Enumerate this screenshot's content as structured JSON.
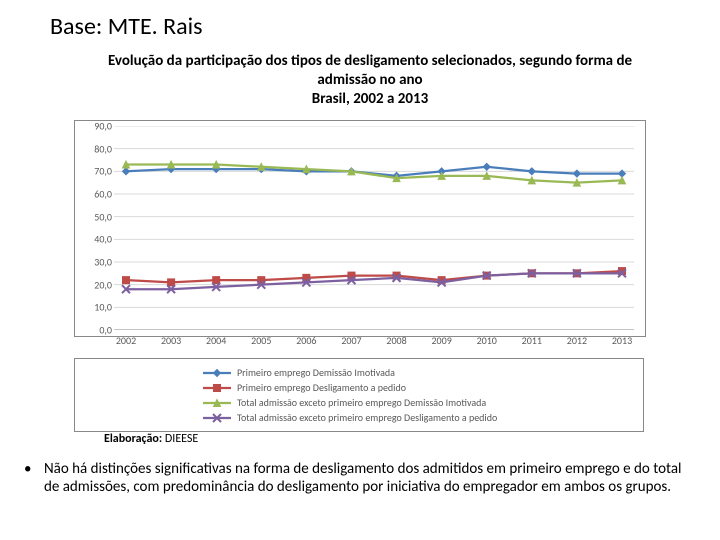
{
  "base_title": "Base: MTE. Rais",
  "chart_title_lines": [
    "Evolução da participação dos tipos de desligamento selecionados, segundo forma de",
    "admissão no ano",
    "Brasil, 2002 a 2013"
  ],
  "source_label": "Elaboração: DIEESE",
  "bullet_text": "Não há distinções significativas na forma de desligamento dos admitidos em primeiro emprego e do total de admissões, com predominância do desligamento por iniciativa do empregador em ambos os grupos.",
  "chart": {
    "type": "line",
    "background_color": "#ffffff",
    "border_color": "#888888",
    "grid_color": "#d9d9d9",
    "tick_color": "#888888",
    "tick_font_size": 10,
    "tick_font_color": "#595959",
    "ylim": [
      0,
      90
    ],
    "ytick_step": 10,
    "y_decimal": ",0",
    "categories": [
      "2002",
      "2003",
      "2004",
      "2005",
      "2006",
      "2007",
      "2008",
      "2009",
      "2010",
      "2011",
      "2012",
      "2013"
    ],
    "series": [
      {
        "name": "Primeiro emprego Demissão Imotivada",
        "color": "#4a7ebb",
        "marker": "diamond",
        "marker_size": 7,
        "line_width": 2.25,
        "values": [
          70,
          71,
          71,
          71,
          70,
          70,
          68,
          70,
          72,
          70,
          69,
          69
        ]
      },
      {
        "name": "Primeiro emprego Desligamento a pedido",
        "color": "#be4b48",
        "marker": "square",
        "marker_size": 7,
        "line_width": 2.25,
        "values": [
          22,
          21,
          22,
          22,
          23,
          24,
          24,
          22,
          24,
          25,
          25,
          26
        ]
      },
      {
        "name": "Total admissão exceto primeiro emprego Demissão Imotivada",
        "color": "#98b954",
        "marker": "triangle",
        "marker_size": 7,
        "line_width": 2.25,
        "values": [
          73,
          73,
          73,
          72,
          71,
          70,
          67,
          68,
          68,
          66,
          65,
          66
        ]
      },
      {
        "name": "Total admissão exceto primeiro emprego Desligamento a pedido",
        "color": "#7d60a0",
        "marker": "cross",
        "marker_size": 8,
        "line_width": 2.25,
        "values": [
          18,
          18,
          19,
          20,
          21,
          22,
          23,
          21,
          24,
          25,
          25,
          25
        ]
      }
    ]
  }
}
